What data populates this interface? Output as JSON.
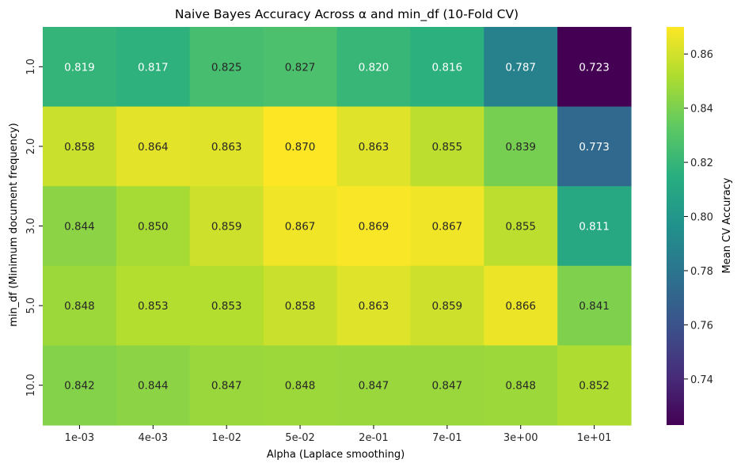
{
  "chart_data": {
    "type": "heatmap",
    "title": "Naive Bayes Accuracy Across α and min_df (10-Fold CV)",
    "xlabel": "Alpha (Laplace smoothing)",
    "ylabel": "min_df (Minimum document frequency)",
    "x_categories": [
      "1e-03",
      "4e-03",
      "1e-02",
      "5e-02",
      "2e-01",
      "7e-01",
      "3e+00",
      "1e+01"
    ],
    "y_categories": [
      "1.0",
      "2.0",
      "3.0",
      "5.0",
      "10.0"
    ],
    "values": [
      [
        0.819,
        0.817,
        0.825,
        0.827,
        0.82,
        0.816,
        0.787,
        0.723
      ],
      [
        0.858,
        0.864,
        0.863,
        0.87,
        0.863,
        0.855,
        0.839,
        0.773
      ],
      [
        0.844,
        0.85,
        0.859,
        0.867,
        0.869,
        0.867,
        0.855,
        0.811
      ],
      [
        0.848,
        0.853,
        0.853,
        0.858,
        0.863,
        0.859,
        0.866,
        0.841
      ],
      [
        0.842,
        0.844,
        0.847,
        0.848,
        0.847,
        0.847,
        0.848,
        0.852
      ]
    ],
    "cell_labels": [
      [
        "0.819",
        "0.817",
        "0.825",
        "0.827",
        "0.820",
        "0.816",
        "0.787",
        "0.723"
      ],
      [
        "0.858",
        "0.864",
        "0.863",
        "0.870",
        "0.863",
        "0.855",
        "0.839",
        "0.773"
      ],
      [
        "0.844",
        "0.850",
        "0.859",
        "0.867",
        "0.869",
        "0.867",
        "0.855",
        "0.811"
      ],
      [
        "0.848",
        "0.853",
        "0.853",
        "0.858",
        "0.863",
        "0.859",
        "0.866",
        "0.841"
      ],
      [
        "0.842",
        "0.844",
        "0.847",
        "0.848",
        "0.847",
        "0.847",
        "0.848",
        "0.852"
      ]
    ],
    "colormap": "viridis",
    "colorbar": {
      "label": "Mean CV Accuracy",
      "range": [
        0.723,
        0.87
      ],
      "ticks": [
        0.74,
        0.76,
        0.78,
        0.8,
        0.82,
        0.84,
        0.86
      ],
      "tick_labels": [
        "0.74",
        "0.76",
        "0.78",
        "0.80",
        "0.82",
        "0.84",
        "0.86"
      ]
    }
  }
}
